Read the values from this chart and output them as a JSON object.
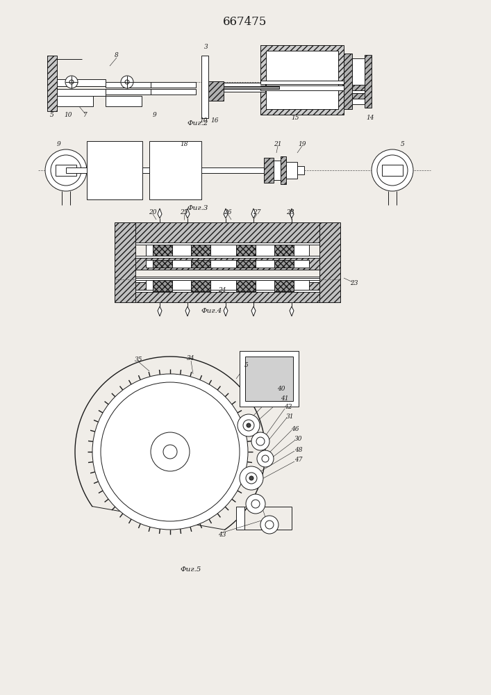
{
  "title": "667475",
  "bg_color": "#f0ede8",
  "line_color": "#1a1a1a",
  "fig2_label": "Фиг.2",
  "fig3_label": "Фиг.3",
  "fig4_label": "Фиг.4",
  "fig5_label": "Фиг.5",
  "hatch_dense": "////",
  "hatch_cross": "xxxx"
}
